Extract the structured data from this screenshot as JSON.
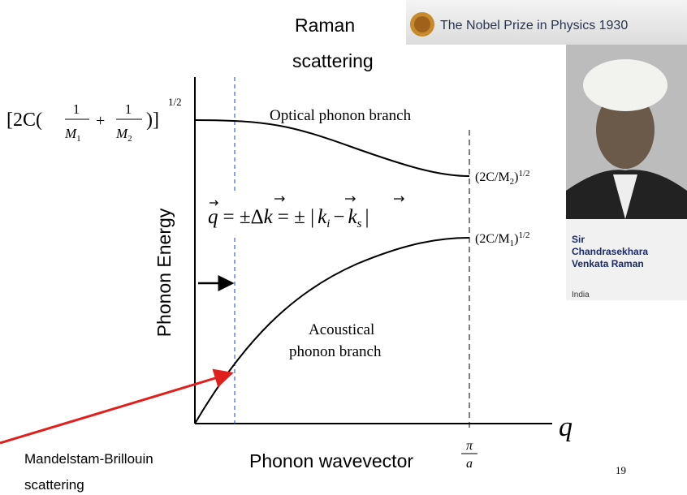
{
  "banner": {
    "title": "The Nobel Prize in Physics 1930"
  },
  "raman_label": [
    "Raman",
    "scattering"
  ],
  "brillouin_label": [
    "Mandelstam-Brillouin",
    "scattering"
  ],
  "laureate": {
    "name": [
      "Sir",
      "Chandrasekhara",
      "Venkata Raman"
    ],
    "country": "India"
  },
  "diagram": {
    "y_axis": "Phonon Energy",
    "x_axis": "Phonon wavevector",
    "x_symbol": "q",
    "x_end": {
      "num": "π",
      "den": "a"
    },
    "optical": "Optical phonon branch",
    "acoustical": [
      "Acoustical",
      "phonon branch"
    ],
    "top_left": {
      "open": "[2C(",
      "n1": "1",
      "d1": "M",
      "s1": "1",
      "plus": "+",
      "n2": "1",
      "d2": "M",
      "s2": "2",
      "close": ")]",
      "exp": "1/2"
    },
    "optical_end": {
      "base": "(2C/M",
      "sub": "2",
      "close": ")",
      "exp": "1/2"
    },
    "acoustic_end": {
      "base": "(2C/M",
      "sub": "1",
      "close": ")",
      "exp": "1/2"
    },
    "wave_eq": {
      "q": "q",
      "eq1": "= ±Δ",
      "k": "k",
      "eq2": "= ± |",
      "ki": "k",
      "i": "i",
      "minus": "−",
      "ks": "k",
      "s": "s",
      "bar": "|"
    }
  },
  "page_number": "19"
}
